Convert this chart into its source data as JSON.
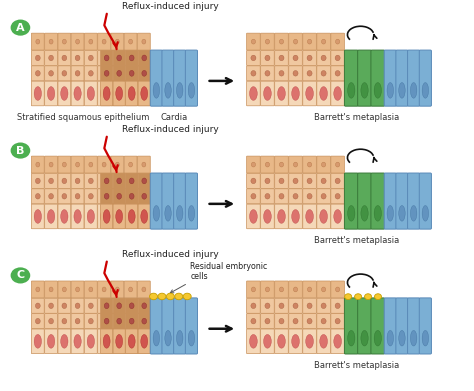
{
  "background_color": "#ffffff",
  "panel_labels": [
    "A",
    "B",
    "C"
  ],
  "label_bg_color": "#4caf50",
  "label_text_color": "#ffffff",
  "squamous_top_color": "#e8b888",
  "squamous_mid_color": "#f0c8a0",
  "squamous_bot_color": "#f5d8b8",
  "squamous_border": "#c8905a",
  "injured_color": "#c8905a",
  "cardia_color": "#7bafd4",
  "cardia_border": "#5a8ab8",
  "barrett_green": "#5aaa5a",
  "barrett_green_border": "#3a7a3a",
  "nucleus_red": "#d86060",
  "nucleus_border": "#b84040",
  "nucleus_dark": "#c84848",
  "arrow_color": "#cc0000",
  "main_arrow_color": "#222222",
  "injury_text": "Reflux-induced injury",
  "embryonic_text": "Residual embryonic\ncells",
  "embryonic_color": "#f5c830",
  "embryonic_border": "#c8a000",
  "label_A_left": "Stratified squamous epithelium",
  "label_A_right": "Cardia",
  "label_result": "Barrett's metaplasia",
  "font_size": 6.5,
  "figsize": [
    4.74,
    3.91
  ],
  "dpi": 100
}
